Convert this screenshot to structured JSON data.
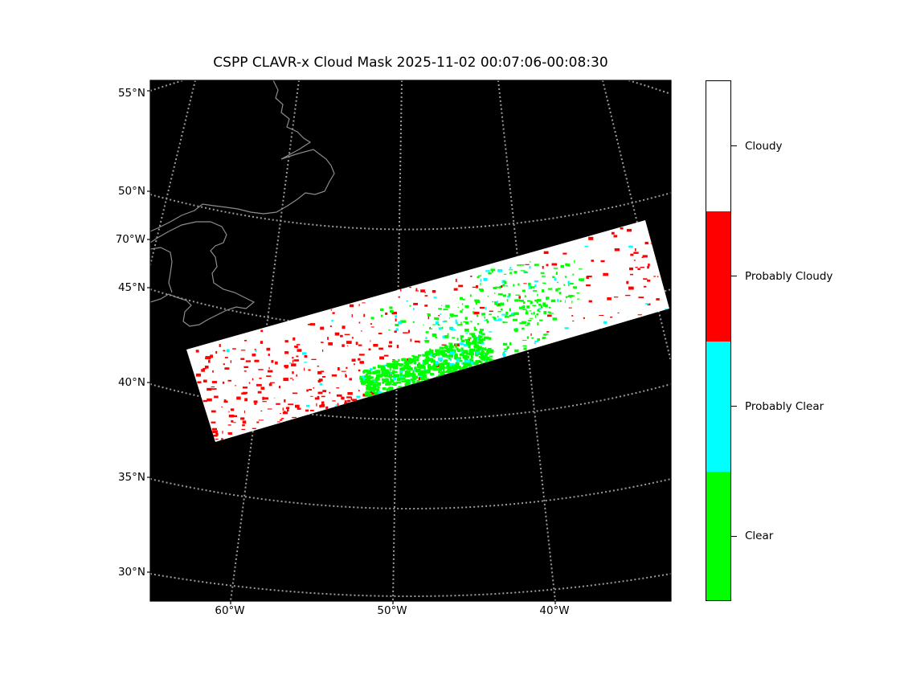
{
  "title": "CSPP CLAVR-x Cloud Mask 2025-11-02 00:07:06-00:08:30",
  "map": {
    "background": "#000000",
    "graticule_color": "#9a9a9a",
    "coastline_color": "#8c8c8c",
    "lat_labels": [
      "55°N",
      "50°N",
      "70°W",
      "45°N",
      "40°N",
      "35°N",
      "30°N"
    ],
    "lon_labels": [
      "60°W",
      "50°W",
      "40°W"
    ]
  },
  "colorbar": {
    "classes": [
      {
        "label": "Cloudy",
        "color": "#ffffff"
      },
      {
        "label": "Probably Cloudy",
        "color": "#ff0000"
      },
      {
        "label": "Probably Clear",
        "color": "#00ffff"
      },
      {
        "label": "Clear",
        "color": "#00ff00"
      }
    ]
  }
}
